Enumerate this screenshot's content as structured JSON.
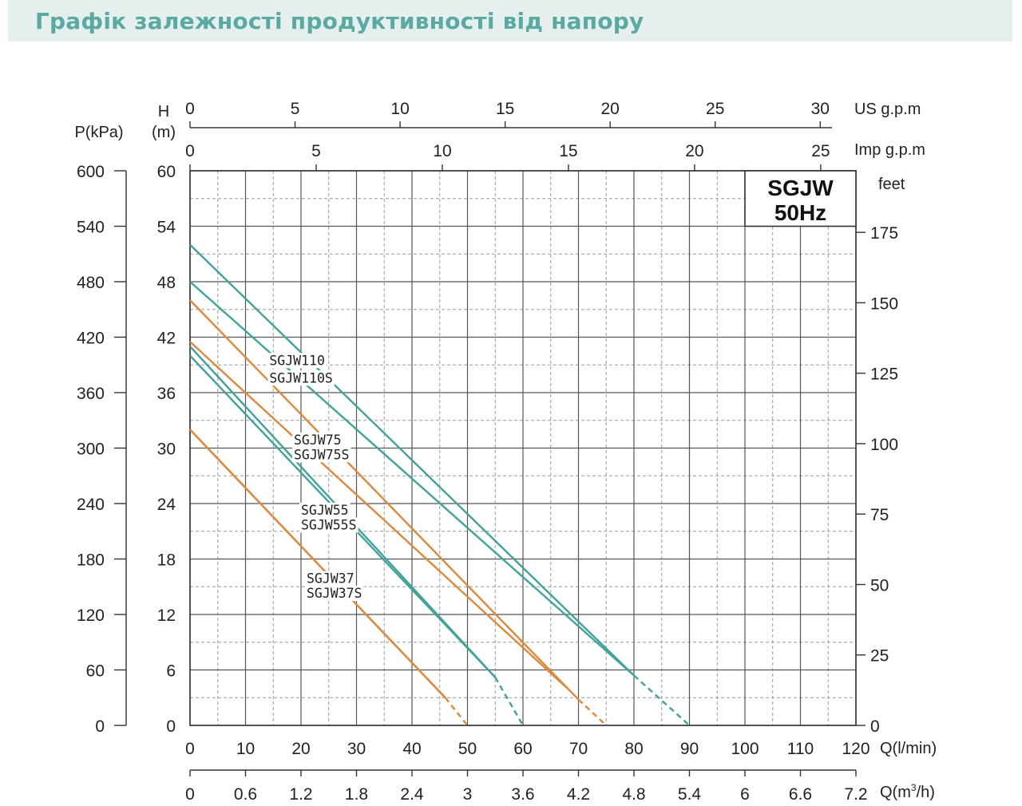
{
  "page": {
    "title": "Графік залежності продуктивності від напору"
  },
  "colors": {
    "teal": "#3fa39a",
    "orange": "#e0883a",
    "grid": "#555555",
    "background": "#ffffff"
  },
  "chart_data": {
    "type": "line",
    "model_box": {
      "line1": "SGJW",
      "line2": "50Hz"
    },
    "axes": {
      "q_lmin": {
        "label": "Q(l/min)",
        "range": [
          0,
          120
        ],
        "ticks": [
          0,
          10,
          20,
          30,
          40,
          50,
          60,
          70,
          80,
          90,
          100,
          110,
          120
        ]
      },
      "q_m3h": {
        "label_prefix": "Q(m",
        "label_sup": "3",
        "label_suffix": "/h)",
        "range": [
          0,
          7.2
        ],
        "ticks": [
          "0",
          "0.6",
          "1.2",
          "1.8",
          "2.4",
          "3",
          "3.6",
          "4.2",
          "4.8",
          "5.4",
          "6",
          "6.6",
          "7.2"
        ]
      },
      "us_gpm": {
        "label": "US g.p.m",
        "ticks": [
          0,
          5,
          10,
          15,
          20,
          25,
          30
        ]
      },
      "imp_gpm": {
        "label": "Imp g.p.m",
        "ticks": [
          0,
          5,
          10,
          15,
          20,
          25
        ]
      },
      "head_m": {
        "label_top": "H",
        "label_bottom": "(m)",
        "range": [
          0,
          60
        ],
        "ticks": [
          0,
          6,
          12,
          18,
          24,
          30,
          36,
          42,
          48,
          54,
          60
        ]
      },
      "pressure_kpa": {
        "label": "P(kPa)",
        "ticks": [
          0,
          60,
          120,
          180,
          240,
          300,
          360,
          420,
          480,
          540,
          600
        ]
      },
      "feet": {
        "label": "feet",
        "ticks": [
          0,
          25,
          50,
          75,
          100,
          125,
          150,
          175
        ]
      }
    },
    "series": [
      {
        "name": "SGJW110",
        "color": "teal",
        "points": [
          [
            0,
            52
          ],
          [
            80,
            5.4
          ]
        ],
        "dashed": [
          [
            80,
            5.4
          ],
          [
            90,
            0
          ]
        ]
      },
      {
        "name": "SGJW110S",
        "color": "teal",
        "points": [
          [
            0,
            48
          ],
          [
            80,
            5.4
          ]
        ],
        "dashed": []
      },
      {
        "name": "SGJW75",
        "color": "orange",
        "points": [
          [
            0,
            46
          ],
          [
            70,
            2.8
          ]
        ],
        "dashed": [
          [
            70,
            2.8
          ],
          [
            75,
            0
          ]
        ]
      },
      {
        "name": "SGJW75S",
        "color": "orange",
        "points": [
          [
            0,
            41.5
          ],
          [
            68,
            4
          ]
        ],
        "dashed": []
      },
      {
        "name": "SGJW55",
        "color": "teal",
        "points": [
          [
            0,
            41
          ],
          [
            55,
            5.2
          ]
        ],
        "dashed": [
          [
            55,
            5.2
          ],
          [
            60,
            0
          ]
        ]
      },
      {
        "name": "SGJW55S",
        "color": "teal",
        "points": [
          [
            0,
            40
          ],
          [
            55,
            5.2
          ]
        ],
        "dashed": []
      },
      {
        "name": "SGJW37",
        "color": "orange",
        "points": [
          [
            0,
            32
          ],
          [
            46,
            3
          ]
        ],
        "dashed": [
          [
            46,
            3
          ],
          [
            50,
            0
          ]
        ]
      },
      {
        "name": "SGJW37S",
        "color": "orange",
        "points": [
          [
            0,
            32
          ],
          [
            46,
            3
          ]
        ],
        "dashed": []
      }
    ],
    "curve_labels": [
      {
        "text": "SGJW110",
        "at": [
          14.3,
          39.0
        ]
      },
      {
        "text": "SGJW110S",
        "at": [
          14.3,
          37.1
        ]
      },
      {
        "text": "SGJW75",
        "at": [
          18.7,
          30.4
        ]
      },
      {
        "text": "SGJW75S",
        "at": [
          18.7,
          28.8
        ]
      },
      {
        "text": "SGJW55",
        "at": [
          20.0,
          22.8
        ]
      },
      {
        "text": "SGJW55S",
        "at": [
          20.0,
          21.2
        ]
      },
      {
        "text": "SGJW37",
        "at": [
          21.0,
          15.4
        ]
      },
      {
        "text": "SGJW37S",
        "at": [
          21.0,
          13.8
        ]
      }
    ]
  }
}
